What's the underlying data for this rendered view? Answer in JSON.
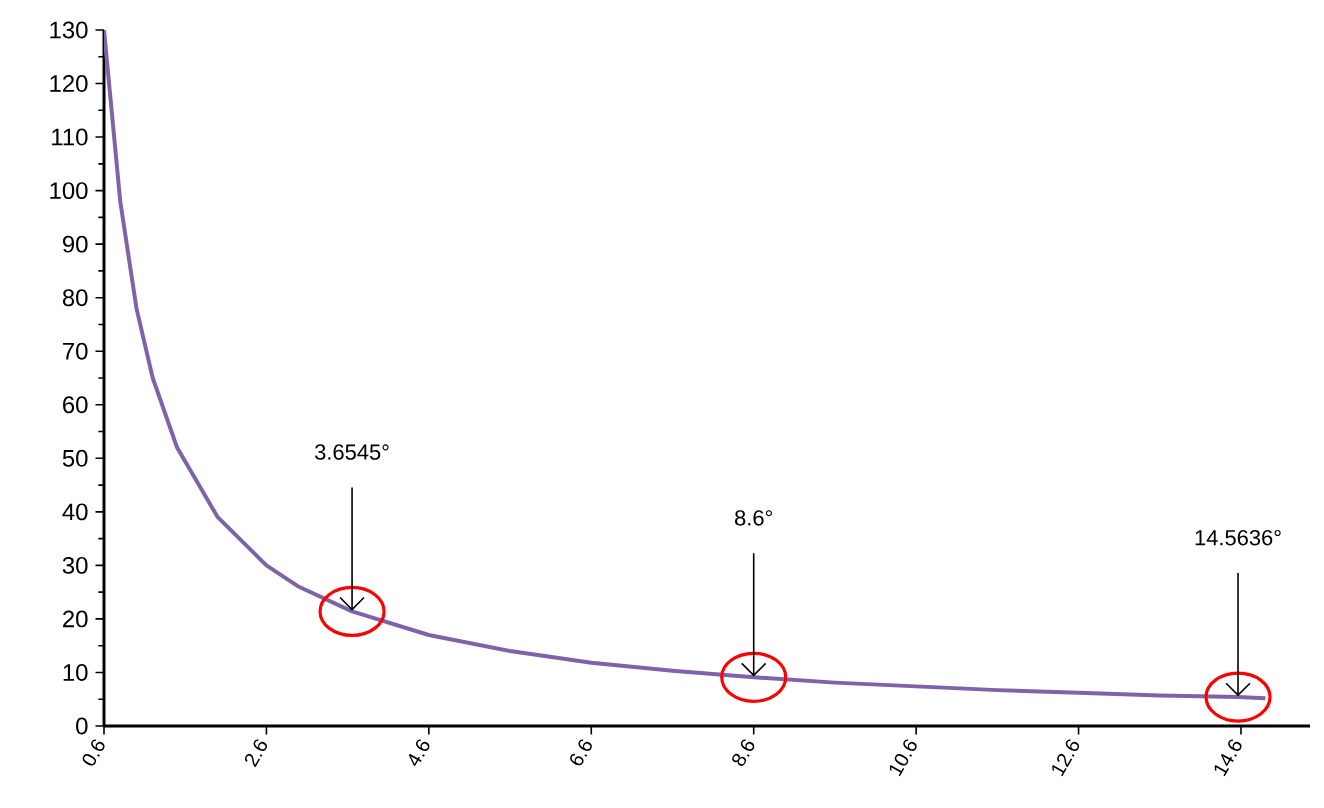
{
  "chart_data": {
    "type": "line",
    "x": [
      0.6,
      0.8,
      1.0,
      1.2,
      1.5,
      2.0,
      2.6,
      3.0,
      3.6545,
      4.6,
      5.6,
      6.6,
      7.6,
      8.6,
      9.6,
      10.6,
      11.6,
      12.6,
      13.6,
      14.5636,
      14.9
    ],
    "series": [
      {
        "color": "#7f63a8",
        "values": [
          130,
          98,
          78,
          65,
          52,
          39,
          30,
          26,
          21.4,
          17,
          14,
          11.8,
          10.3,
          9.1,
          8.1,
          7.4,
          6.7,
          6.2,
          5.7,
          5.4,
          5.2
        ]
      }
    ],
    "xlim": [
      0.6,
      15.45
    ],
    "xticks": [
      0.6,
      2.6,
      4.6,
      6.6,
      8.6,
      10.6,
      12.6,
      14.6
    ],
    "ylim": [
      0,
      130
    ],
    "yticks": [
      0,
      10,
      20,
      30,
      40,
      50,
      60,
      70,
      80,
      90,
      100,
      110,
      120,
      130
    ],
    "grid": false,
    "marker": "none",
    "line_style": "solid",
    "annotations": [
      {
        "text": "3.6545°",
        "x": 3.6545,
        "y": 21.4
      },
      {
        "text": "8.6°",
        "x": 8.6,
        "y": 9.1
      },
      {
        "text": "14.5636°",
        "x": 14.5636,
        "y": 5.4
      }
    ]
  }
}
